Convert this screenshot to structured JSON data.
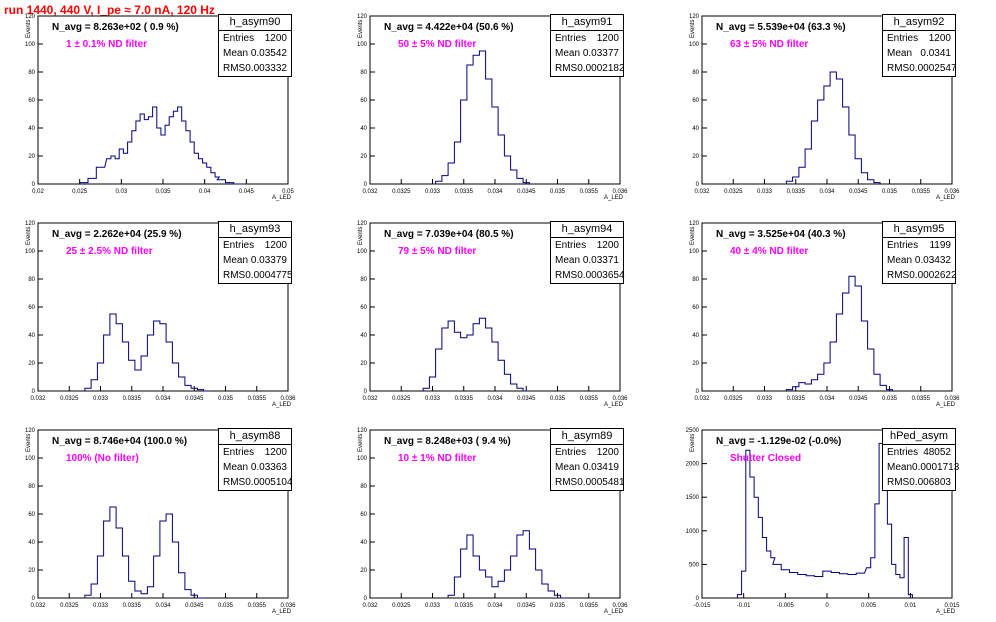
{
  "title": "run 1440,   440 V, I_pe ≈ 7.0 nA, 120 Hz",
  "stats_labels": {
    "entries": "Entries",
    "mean": "Mean",
    "rms": "RMS"
  },
  "colors": {
    "hist": "#000080",
    "note": "#ff00ff",
    "title": "#ff0000"
  },
  "chart_data": [
    {
      "type": "histogram",
      "name": "h_asym90",
      "navg": "N_avg = 8.263e+02 ( 0.9 %)",
      "note": "1 ± 0.1% ND filter",
      "stats": {
        "entries": "1200",
        "mean": "0.03542",
        "rms": "0.003332"
      },
      "xlabel": "A_LED",
      "ylabel": "Events",
      "xlim": [
        0.02,
        0.05
      ],
      "ylim": [
        0,
        120
      ],
      "xticks": [
        "0.02",
        "0.025",
        "0.03",
        "0.035",
        "0.04",
        "0.045",
        "0.05"
      ],
      "yticks": [
        "0",
        "20",
        "40",
        "60",
        "80",
        "100",
        "120"
      ],
      "x": [
        0.0255,
        0.0265,
        0.0275,
        0.0285,
        0.029,
        0.0295,
        0.03,
        0.0305,
        0.031,
        0.0315,
        0.032,
        0.0325,
        0.033,
        0.0335,
        0.034,
        0.0345,
        0.035,
        0.0355,
        0.036,
        0.0365,
        0.037,
        0.0375,
        0.038,
        0.0385,
        0.039,
        0.0395,
        0.04,
        0.0405,
        0.041,
        0.0415,
        0.042,
        0.043,
        0.044
      ],
      "y": [
        1,
        4,
        12,
        18,
        20,
        18,
        25,
        22,
        30,
        38,
        45,
        50,
        46,
        48,
        55,
        40,
        35,
        42,
        48,
        52,
        55,
        45,
        38,
        30,
        22,
        18,
        15,
        12,
        8,
        5,
        3,
        1,
        0
      ]
    },
    {
      "type": "histogram",
      "name": "h_asym91",
      "navg": "N_avg = 4.422e+04 (50.6 %)",
      "note": "50 ± 5% ND filter",
      "stats": {
        "entries": "1200",
        "mean": "0.03377",
        "rms": "0.0002182"
      },
      "xlabel": "A_LED",
      "ylabel": "Events",
      "xlim": [
        0.032,
        0.036
      ],
      "ylim": [
        0,
        120
      ],
      "xticks": [
        "0.032",
        "0.0325",
        "0.033",
        "0.0335",
        "0.034",
        "0.0345",
        "0.035",
        "0.0355",
        "0.036"
      ],
      "yticks": [
        "0",
        "20",
        "40",
        "60",
        "80",
        "100",
        "120"
      ],
      "x": [
        0.0331,
        0.0332,
        0.0333,
        0.0334,
        0.0335,
        0.0336,
        0.0337,
        0.0338,
        0.0339,
        0.034,
        0.0341,
        0.0342,
        0.0343,
        0.0344,
        0.0345
      ],
      "y": [
        2,
        6,
        15,
        30,
        60,
        85,
        92,
        95,
        75,
        55,
        35,
        20,
        10,
        4,
        1
      ]
    },
    {
      "type": "histogram",
      "name": "h_asym92",
      "navg": "N_avg = 5.539e+04 (63.3 %)",
      "note": "63 ± 5% ND filter",
      "stats": {
        "entries": "1200",
        "mean": "0.0341",
        "rms": "0.0002547"
      },
      "xlabel": "A_LED",
      "ylabel": "Events",
      "xlim": [
        0.032,
        0.036
      ],
      "ylim": [
        0,
        120
      ],
      "xticks": [
        "0.032",
        "0.0325",
        "0.033",
        "0.0335",
        "0.034",
        "0.0345",
        "0.035",
        "0.0355",
        "0.036"
      ],
      "yticks": [
        "0",
        "20",
        "40",
        "60",
        "80",
        "100",
        "120"
      ],
      "x": [
        0.0334,
        0.0335,
        0.0336,
        0.0337,
        0.0338,
        0.0339,
        0.034,
        0.0341,
        0.0342,
        0.0343,
        0.0344,
        0.0345,
        0.0346,
        0.0347,
        0.0348
      ],
      "y": [
        2,
        5,
        12,
        25,
        45,
        60,
        70,
        80,
        75,
        55,
        35,
        18,
        8,
        3,
        1
      ]
    },
    {
      "type": "histogram",
      "name": "h_asym93",
      "navg": "N_avg = 2.262e+04 (25.9 %)",
      "note": "25 ± 2.5% ND filter",
      "stats": {
        "entries": "1200",
        "mean": "0.03379",
        "rms": "0.0004775"
      },
      "xlabel": "A_LED",
      "ylabel": "Events",
      "xlim": [
        0.032,
        0.036
      ],
      "ylim": [
        0,
        120
      ],
      "xticks": [
        "0.032",
        "0.0325",
        "0.033",
        "0.0335",
        "0.034",
        "0.0345",
        "0.035",
        "0.0355",
        "0.036"
      ],
      "yticks": [
        "0",
        "20",
        "40",
        "60",
        "80",
        "100",
        "120"
      ],
      "x": [
        0.0328,
        0.0329,
        0.033,
        0.0331,
        0.0332,
        0.0333,
        0.0334,
        0.0335,
        0.0336,
        0.0337,
        0.0338,
        0.0339,
        0.034,
        0.0341,
        0.0342,
        0.0343,
        0.0344,
        0.0345,
        0.0346,
        0.0347
      ],
      "y": [
        2,
        8,
        20,
        40,
        55,
        48,
        35,
        22,
        15,
        25,
        40,
        50,
        48,
        35,
        20,
        10,
        4,
        2,
        1,
        0
      ]
    },
    {
      "type": "histogram",
      "name": "h_asym94",
      "navg": "N_avg = 7.039e+04 (80.5 %)",
      "note": "79 ± 5% ND filter",
      "stats": {
        "entries": "1200",
        "mean": "0.03371",
        "rms": "0.0003654"
      },
      "xlabel": "A_LED",
      "ylabel": "Events",
      "xlim": [
        0.032,
        0.036
      ],
      "ylim": [
        0,
        120
      ],
      "xticks": [
        "0.032",
        "0.0325",
        "0.033",
        "0.0335",
        "0.034",
        "0.0345",
        "0.035",
        "0.0355",
        "0.036"
      ],
      "yticks": [
        "0",
        "20",
        "40",
        "60",
        "80",
        "100",
        "120"
      ],
      "x": [
        0.0329,
        0.033,
        0.0331,
        0.0332,
        0.0333,
        0.0334,
        0.0335,
        0.0336,
        0.0337,
        0.0338,
        0.0339,
        0.034,
        0.0341,
        0.0342,
        0.0343,
        0.0344,
        0.0345
      ],
      "y": [
        2,
        10,
        30,
        45,
        50,
        42,
        38,
        40,
        48,
        52,
        45,
        35,
        22,
        12,
        5,
        2,
        0
      ]
    },
    {
      "type": "histogram",
      "name": "h_asym95",
      "navg": "N_avg = 3.525e+04 (40.3 %)",
      "note": "40 ± 4% ND filter",
      "stats": {
        "entries": "1199",
        "mean": "0.03432",
        "rms": "0.0002622"
      },
      "xlabel": "A_LED",
      "ylabel": "Events",
      "xlim": [
        0.032,
        0.036
      ],
      "ylim": [
        0,
        120
      ],
      "xticks": [
        "0.032",
        "0.0325",
        "0.033",
        "0.0335",
        "0.034",
        "0.0345",
        "0.035",
        "0.0355",
        "0.036"
      ],
      "yticks": [
        "0",
        "20",
        "40",
        "60",
        "80",
        "100",
        "120"
      ],
      "x": [
        0.0334,
        0.0335,
        0.0336,
        0.0337,
        0.0338,
        0.0339,
        0.034,
        0.0341,
        0.0342,
        0.0343,
        0.0344,
        0.0345,
        0.0346,
        0.0347,
        0.0348,
        0.0349,
        0.035
      ],
      "y": [
        1,
        3,
        6,
        5,
        8,
        12,
        20,
        35,
        55,
        70,
        82,
        75,
        50,
        30,
        12,
        4,
        1
      ]
    },
    {
      "type": "histogram",
      "name": "h_asym88",
      "navg": "N_avg = 8.746e+04 (100.0 %)",
      "note": "100% (No filter)",
      "stats": {
        "entries": "1200",
        "mean": "0.03363",
        "rms": "0.0005104"
      },
      "xlabel": "A_LED",
      "ylabel": "Events",
      "xlim": [
        0.032,
        0.036
      ],
      "ylim": [
        0,
        120
      ],
      "xticks": [
        "0.032",
        "0.0325",
        "0.033",
        "0.0335",
        "0.034",
        "0.0345",
        "0.035",
        "0.0355",
        "0.036"
      ],
      "yticks": [
        "0",
        "20",
        "40",
        "60",
        "80",
        "100",
        "120"
      ],
      "x": [
        0.0328,
        0.0329,
        0.033,
        0.0331,
        0.0332,
        0.0333,
        0.0334,
        0.0335,
        0.0336,
        0.0337,
        0.0338,
        0.0339,
        0.034,
        0.0341,
        0.0342,
        0.0343,
        0.0344,
        0.0345,
        0.0346
      ],
      "y": [
        2,
        10,
        30,
        55,
        65,
        50,
        30,
        12,
        5,
        3,
        8,
        30,
        55,
        60,
        40,
        18,
        6,
        2,
        0
      ]
    },
    {
      "type": "histogram",
      "name": "h_asym89",
      "navg": "N_avg = 8.248e+03 ( 9.4 %)",
      "note": "10 ± 1% ND filter",
      "stats": {
        "entries": "1200",
        "mean": "0.03419",
        "rms": "0.0005481"
      },
      "xlabel": "A_LED",
      "ylabel": "Events",
      "xlim": [
        0.032,
        0.036
      ],
      "ylim": [
        0,
        120
      ],
      "xticks": [
        "0.032",
        "0.0325",
        "0.033",
        "0.0335",
        "0.034",
        "0.0345",
        "0.035",
        "0.0355",
        "0.036"
      ],
      "yticks": [
        "0",
        "20",
        "40",
        "60",
        "80",
        "100",
        "120"
      ],
      "x": [
        0.0333,
        0.0334,
        0.0335,
        0.0336,
        0.0337,
        0.0338,
        0.0339,
        0.034,
        0.0341,
        0.0342,
        0.0343,
        0.0344,
        0.0345,
        0.0346,
        0.0347,
        0.0348,
        0.0349,
        0.035,
        0.0351
      ],
      "y": [
        2,
        15,
        35,
        45,
        30,
        20,
        15,
        8,
        12,
        20,
        30,
        45,
        48,
        35,
        20,
        10,
        5,
        2,
        0
      ]
    },
    {
      "type": "histogram",
      "name": "hPed_asym",
      "navg": "N_avg = -1.129e-02 (-0.0%)",
      "note": "Shutter Closed",
      "stats": {
        "entries": "48052",
        "mean": "0.0001713",
        "rms": "0.006803"
      },
      "xlabel": "A_LED",
      "ylabel": "Events",
      "xlim": [
        -0.015,
        0.015
      ],
      "ylim": [
        0,
        2500
      ],
      "xticks": [
        "-0.015",
        "-0.01",
        "-0.005",
        "0",
        "0.005",
        "0.01",
        "0.015"
      ],
      "yticks": [
        "0",
        "500",
        "1000",
        "1500",
        "2000",
        "2500"
      ],
      "x": [
        -0.0105,
        -0.01,
        -0.0095,
        -0.009,
        -0.0085,
        -0.008,
        -0.0075,
        -0.007,
        -0.0065,
        -0.006,
        -0.005,
        -0.004,
        -0.003,
        -0.002,
        -0.001,
        0.0,
        0.001,
        0.002,
        0.003,
        0.004,
        0.005,
        0.0055,
        0.006,
        0.0065,
        0.007,
        0.0075,
        0.008,
        0.0085,
        0.009,
        0.0095,
        0.01
      ],
      "y": [
        50,
        400,
        2200,
        1800,
        1500,
        1200,
        900,
        700,
        600,
        500,
        420,
        380,
        350,
        330,
        320,
        400,
        380,
        360,
        350,
        370,
        450,
        600,
        1400,
        2300,
        1900,
        1100,
        500,
        350,
        300,
        900,
        50
      ]
    }
  ]
}
